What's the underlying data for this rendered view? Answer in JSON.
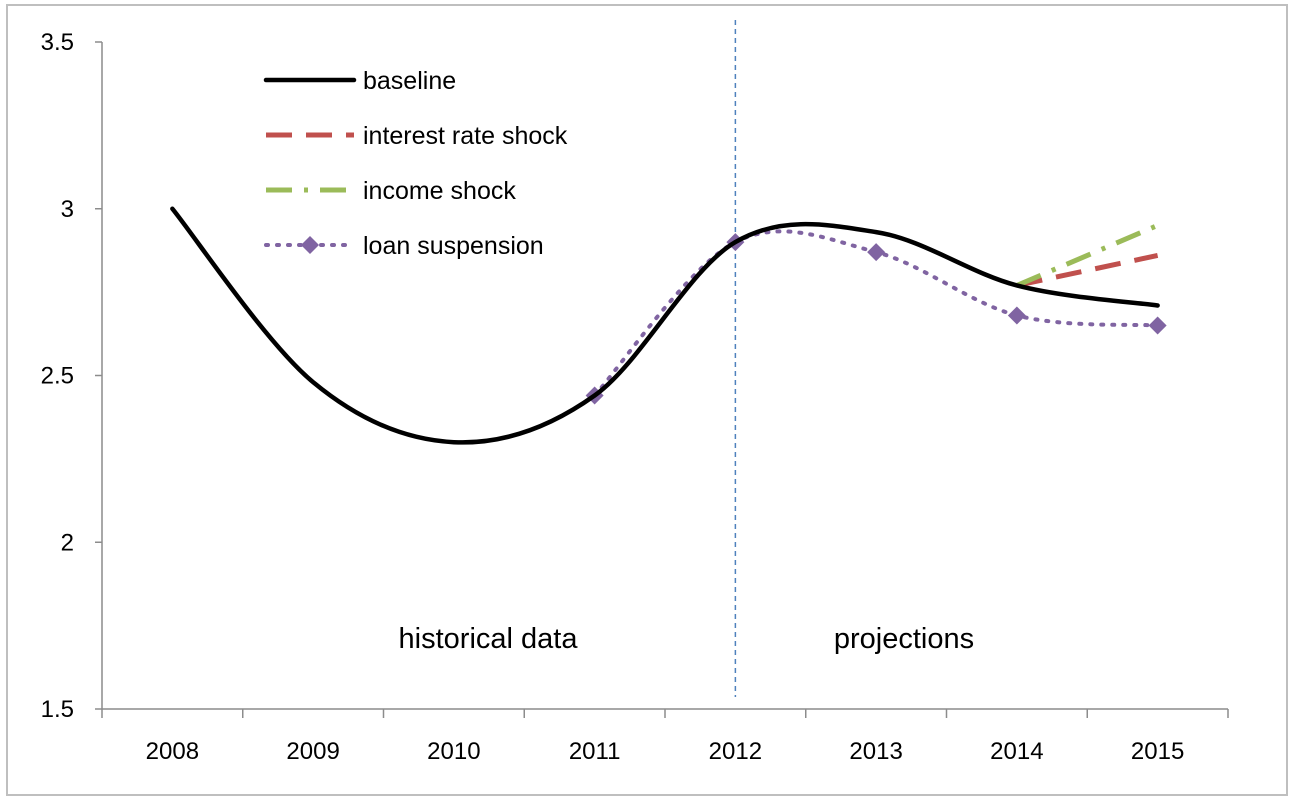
{
  "chart_data": {
    "type": "line",
    "title": "",
    "xlabel": "",
    "ylabel": "",
    "categories": [
      "2008",
      "2009",
      "2010",
      "2011",
      "2012",
      "2013",
      "2014",
      "2015"
    ],
    "ylim": [
      1.5,
      3.5
    ],
    "yticks": [
      1.5,
      2,
      2.5,
      3,
      3.5
    ],
    "ytick_labels": [
      "1.5",
      "2",
      "2.5",
      "3",
      "3.5"
    ],
    "grid": false,
    "legend_position": "top-left",
    "series": [
      {
        "name": "baseline",
        "color": "#000000",
        "style": "solid",
        "values": [
          3.0,
          2.48,
          2.3,
          2.44,
          2.9,
          2.93,
          2.77,
          2.71
        ]
      },
      {
        "name": "interest rate shock",
        "color": "#c0504d",
        "style": "dash",
        "values": [
          null,
          null,
          null,
          null,
          null,
          null,
          2.77,
          2.86
        ]
      },
      {
        "name": "income shock",
        "color": "#9bbb59",
        "style": "dashdot",
        "values": [
          null,
          null,
          null,
          null,
          null,
          null,
          2.77,
          2.95
        ]
      },
      {
        "name": "loan suspension",
        "color": "#8064a2",
        "style": "dotted",
        "marker": "diamond",
        "values": [
          null,
          null,
          null,
          2.44,
          2.9,
          2.87,
          2.68,
          2.65
        ]
      }
    ],
    "divider_between": "2011 | 2012",
    "annotations": {
      "historical": "historical data",
      "projections": "projections"
    }
  }
}
